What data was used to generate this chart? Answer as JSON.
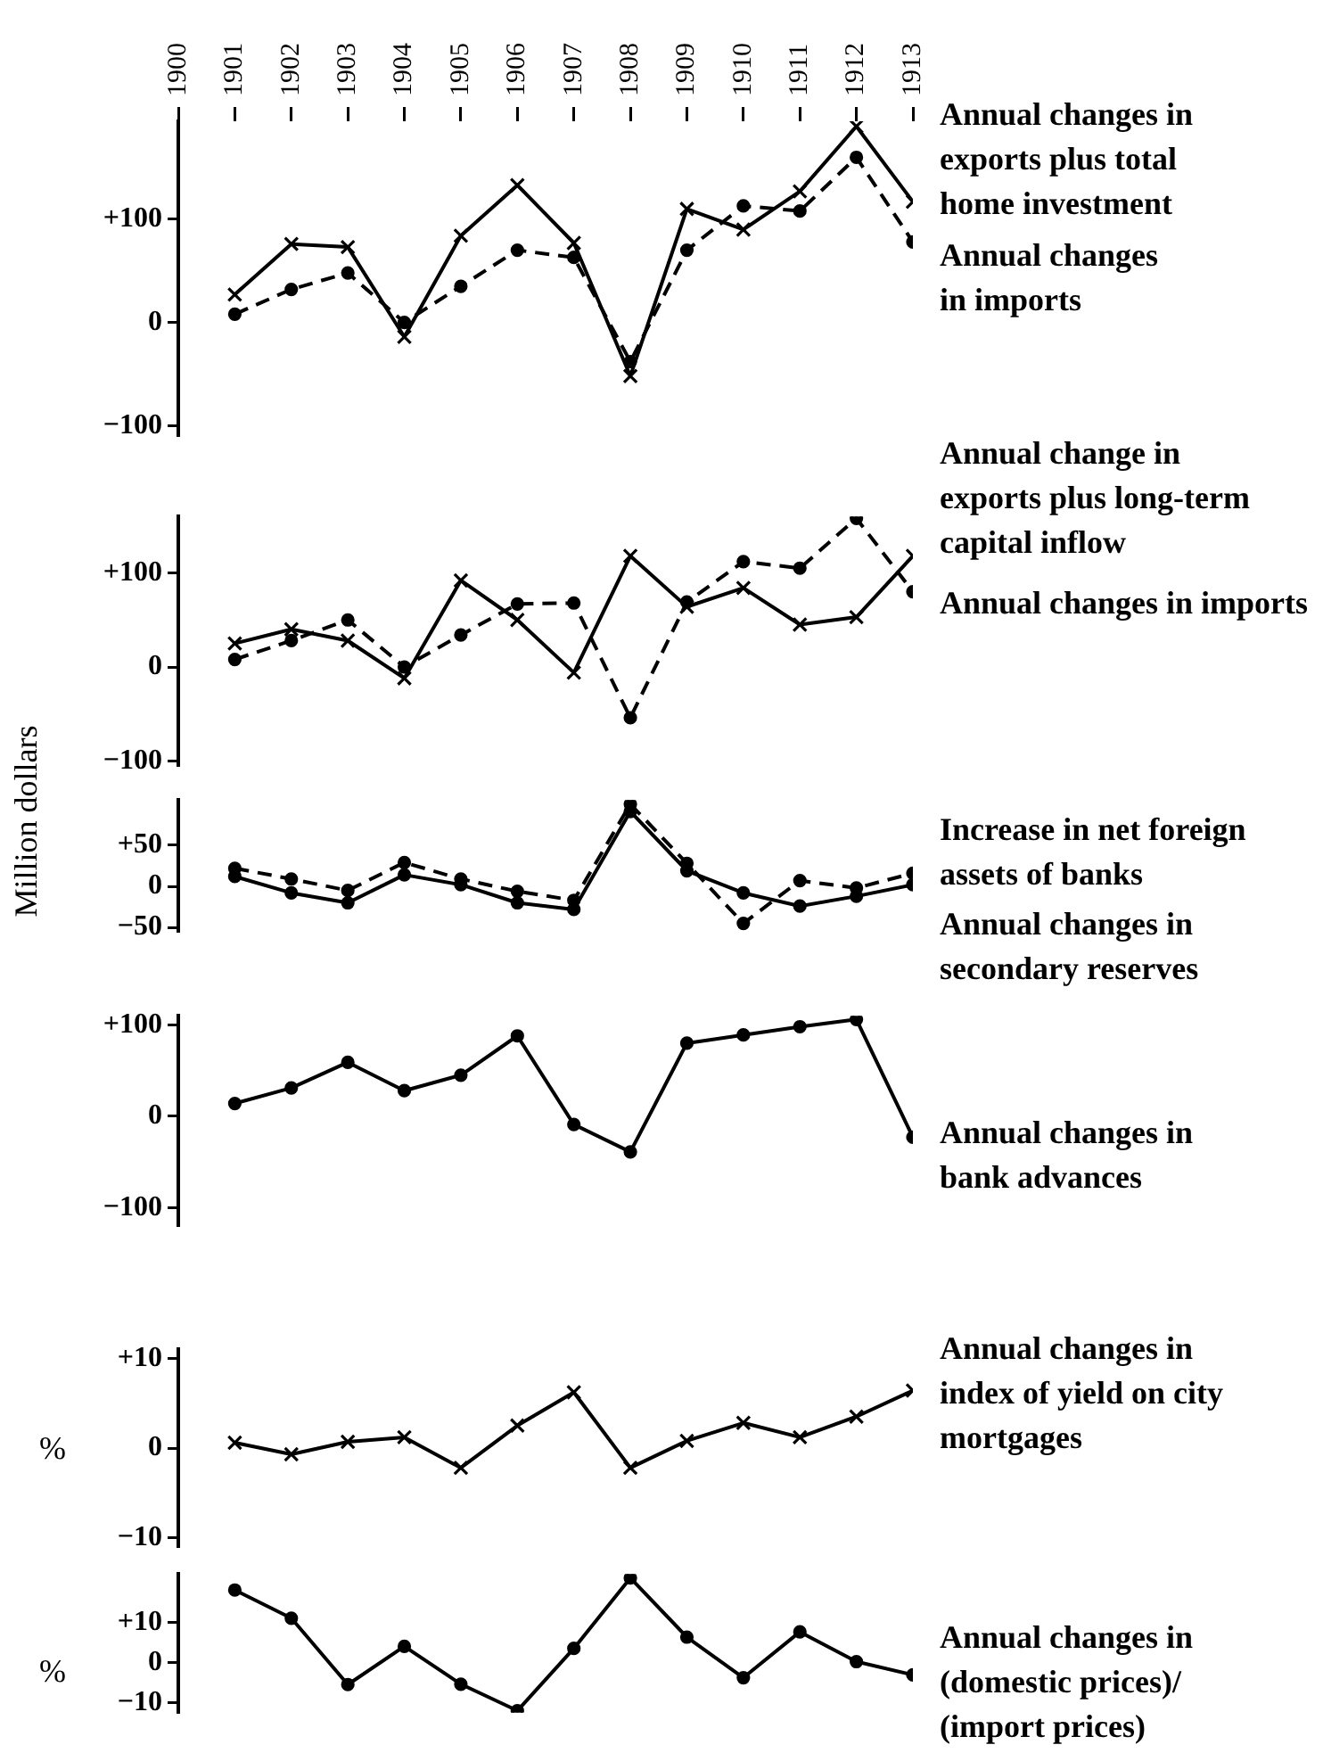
{
  "chart_data": [
    {
      "type": "line",
      "x": [
        1901,
        1902,
        1903,
        1904,
        1905,
        1906,
        1907,
        1908,
        1909,
        1910,
        1911,
        1912,
        1913
      ],
      "xlim": [
        1900,
        1913
      ],
      "xticks": [
        1900,
        1901,
        1902,
        1903,
        1904,
        1905,
        1906,
        1907,
        1908,
        1909,
        1910,
        1911,
        1912,
        1913
      ],
      "ylim": [
        -110,
        195
      ],
      "yticks": [
        {
          "value": -100,
          "label": "−100"
        },
        {
          "value": 0,
          "label": "0"
        },
        {
          "value": 100,
          "label": "+100"
        }
      ],
      "series": [
        {
          "name": "Annual changes in exports plus total home investment",
          "color": "#000000",
          "marker": "cross",
          "line_style": "solid",
          "values": [
            27,
            76,
            73,
            -14,
            84,
            133,
            77,
            -52,
            110,
            90,
            127,
            190,
            117
          ]
        },
        {
          "name": "Annual changes in imports",
          "color": "#000000",
          "marker": "circle",
          "line_style": "dashed",
          "values": [
            8,
            32,
            48,
            0,
            35,
            70,
            63,
            -38,
            70,
            113,
            108,
            160,
            78
          ]
        }
      ]
    },
    {
      "type": "line",
      "x": [
        1901,
        1902,
        1903,
        1904,
        1905,
        1906,
        1907,
        1908,
        1909,
        1910,
        1911,
        1912,
        1913
      ],
      "xlim": [
        1900,
        1913
      ],
      "tick_labels": "y",
      "ylabel": "Million dollars",
      "ylim": [
        -105,
        160
      ],
      "yticks": [
        {
          "value": -100,
          "label": "−100"
        },
        {
          "value": 0,
          "label": "0"
        },
        {
          "value": 100,
          "label": "+100"
        }
      ],
      "series": [
        {
          "name": "Annual change in exports plus long-term capital inflow",
          "color": "#000000",
          "marker": "cross",
          "line_style": "solid",
          "values": [
            25,
            40,
            28,
            -12,
            92,
            50,
            -6,
            118,
            64,
            84,
            45,
            53,
            118
          ]
        },
        {
          "name": "Annual changes in imports",
          "color": "#000000",
          "marker": "circle",
          "line_style": "dashed",
          "values": [
            8,
            28,
            50,
            0,
            34,
            67,
            68,
            -54,
            69,
            112,
            105,
            158,
            80
          ]
        }
      ]
    },
    {
      "type": "line",
      "x": [
        1901,
        1902,
        1903,
        1904,
        1905,
        1906,
        1907,
        1908,
        1909,
        1910,
        1911,
        1912,
        1913
      ],
      "xlim": [
        1900,
        1913
      ],
      "tick_labels": "y",
      "ylim": [
        -55,
        105
      ],
      "yticks": [
        {
          "value": -50,
          "label": "−50"
        },
        {
          "value": 0,
          "label": "0"
        },
        {
          "value": 50,
          "label": "+50"
        }
      ],
      "series": [
        {
          "name": "Increase in net foreign assets of banks",
          "color": "#000000",
          "marker": "circle",
          "line_style": "solid",
          "values": [
            12,
            -8,
            -20,
            14,
            2,
            -20,
            -28,
            91,
            19,
            -8,
            -24,
            -12,
            2
          ]
        },
        {
          "name": "Annual changes in secondary reserves",
          "color": "#000000",
          "marker": "circle",
          "line_style": "dashed",
          "values": [
            22,
            9,
            -5,
            29,
            9,
            -6,
            -17,
            100,
            28,
            -45,
            7,
            -2,
            16
          ]
        }
      ]
    },
    {
      "type": "line",
      "x": [
        1901,
        1902,
        1903,
        1904,
        1905,
        1906,
        1907,
        1908,
        1909,
        1910,
        1911,
        1912,
        1913
      ],
      "xlim": [
        1900,
        1913
      ],
      "tick_labels": "y",
      "ylim": [
        -120,
        110
      ],
      "yticks": [
        {
          "value": -100,
          "label": "−100"
        },
        {
          "value": 0,
          "label": "0"
        },
        {
          "value": 100,
          "label": "+100"
        }
      ],
      "series": [
        {
          "name": "Annual changes in bank advances",
          "color": "#000000",
          "marker": "circle",
          "line_style": "solid",
          "values": [
            14,
            31,
            59,
            28,
            45,
            88,
            -9,
            -39,
            80,
            89,
            98,
            106,
            -23
          ]
        }
      ]
    },
    {
      "type": "line",
      "x": [
        1901,
        1902,
        1903,
        1904,
        1905,
        1906,
        1907,
        1908,
        1909,
        1910,
        1911,
        1912,
        1913
      ],
      "xlim": [
        1900,
        1913
      ],
      "tick_labels": "y",
      "ylabel": "%",
      "ylim": [
        -11,
        11
      ],
      "yticks": [
        {
          "value": -10,
          "label": "−10"
        },
        {
          "value": 0,
          "label": "0"
        },
        {
          "value": 10,
          "label": "+10"
        }
      ],
      "series": [
        {
          "name": "Annual changes in index of yield on city mortgages",
          "color": "#000000",
          "marker": "cross",
          "line_style": "solid",
          "values": [
            0.6,
            -0.7,
            0.7,
            1.2,
            -2.2,
            2.5,
            6.2,
            -2.2,
            0.8,
            2.8,
            1.2,
            3.5,
            6.4
          ]
        }
      ]
    },
    {
      "type": "line",
      "x": [
        1901,
        1902,
        1903,
        1904,
        1905,
        1906,
        1907,
        1908,
        1909,
        1910,
        1911,
        1912,
        1913
      ],
      "xlim": [
        1900,
        1913
      ],
      "tick_labels": "y",
      "ylabel": "%",
      "ylim": [
        -12.5,
        22
      ],
      "yticks": [
        {
          "value": -10,
          "label": "−10"
        },
        {
          "value": 0,
          "label": "0"
        },
        {
          "value": 10,
          "label": "+10"
        }
      ],
      "series": [
        {
          "name": "Annual changes in (domestic prices)/ (import prices)",
          "color": "#000000",
          "marker": "circle",
          "line_style": "solid",
          "values": [
            18,
            11,
            -5.5,
            4,
            -5.4,
            -12,
            3.5,
            21,
            6.3,
            -3.8,
            7.6,
            0.2,
            -3.1
          ]
        }
      ]
    }
  ]
}
